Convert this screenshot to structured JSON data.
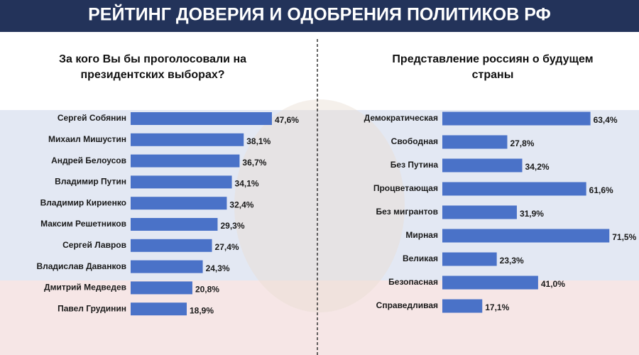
{
  "header": {
    "title": "РЕЙТИНГ ДОВЕРИЯ И ОДОБРЕНИЯ ПОЛИТИКОВ РФ"
  },
  "chart_data": [
    {
      "type": "bar",
      "orientation": "horizontal",
      "title": [
        "За кого Вы бы проголосовали на",
        "президентских выборах?"
      ],
      "categories": [
        "Сергей Собянин",
        "Михаил Мишустин",
        "Андрей Белоусов",
        "Владимир Путин",
        "Владимир Кириенко",
        "Максим Решетников",
        "Сергей Лавров",
        "Владислав Даванков",
        "Дмитрий Медведев",
        "Павел Грудинин"
      ],
      "values": [
        47.6,
        38.1,
        36.7,
        34.1,
        32.4,
        29.3,
        27.4,
        24.3,
        20.8,
        18.9
      ],
      "value_labels": [
        "47,6%",
        "38,1%",
        "36,7%",
        "34,1%",
        "32,4%",
        "29,3%",
        "27,4%",
        "24,3%",
        "20,8%",
        "18,9%"
      ],
      "color": "#4a72c8"
    },
    {
      "type": "bar",
      "orientation": "horizontal",
      "title": [
        "Представление россиян о будущем",
        "страны"
      ],
      "categories": [
        "Демократическая",
        "Свободная",
        "Без Путина",
        "Процветающая",
        "Без мигрантов",
        "Мирная",
        "Великая",
        "Безопасная",
        "Справедливая"
      ],
      "values": [
        63.4,
        27.8,
        34.2,
        61.6,
        31.9,
        71.5,
        23.3,
        41.0,
        17.1
      ],
      "value_labels": [
        "63,4%",
        "27,8%",
        "34,2%",
        "61,6%",
        "31,9%",
        "71,5%",
        "23,3%",
        "41,0%",
        "17,1%"
      ],
      "color": "#4a72c8"
    }
  ]
}
